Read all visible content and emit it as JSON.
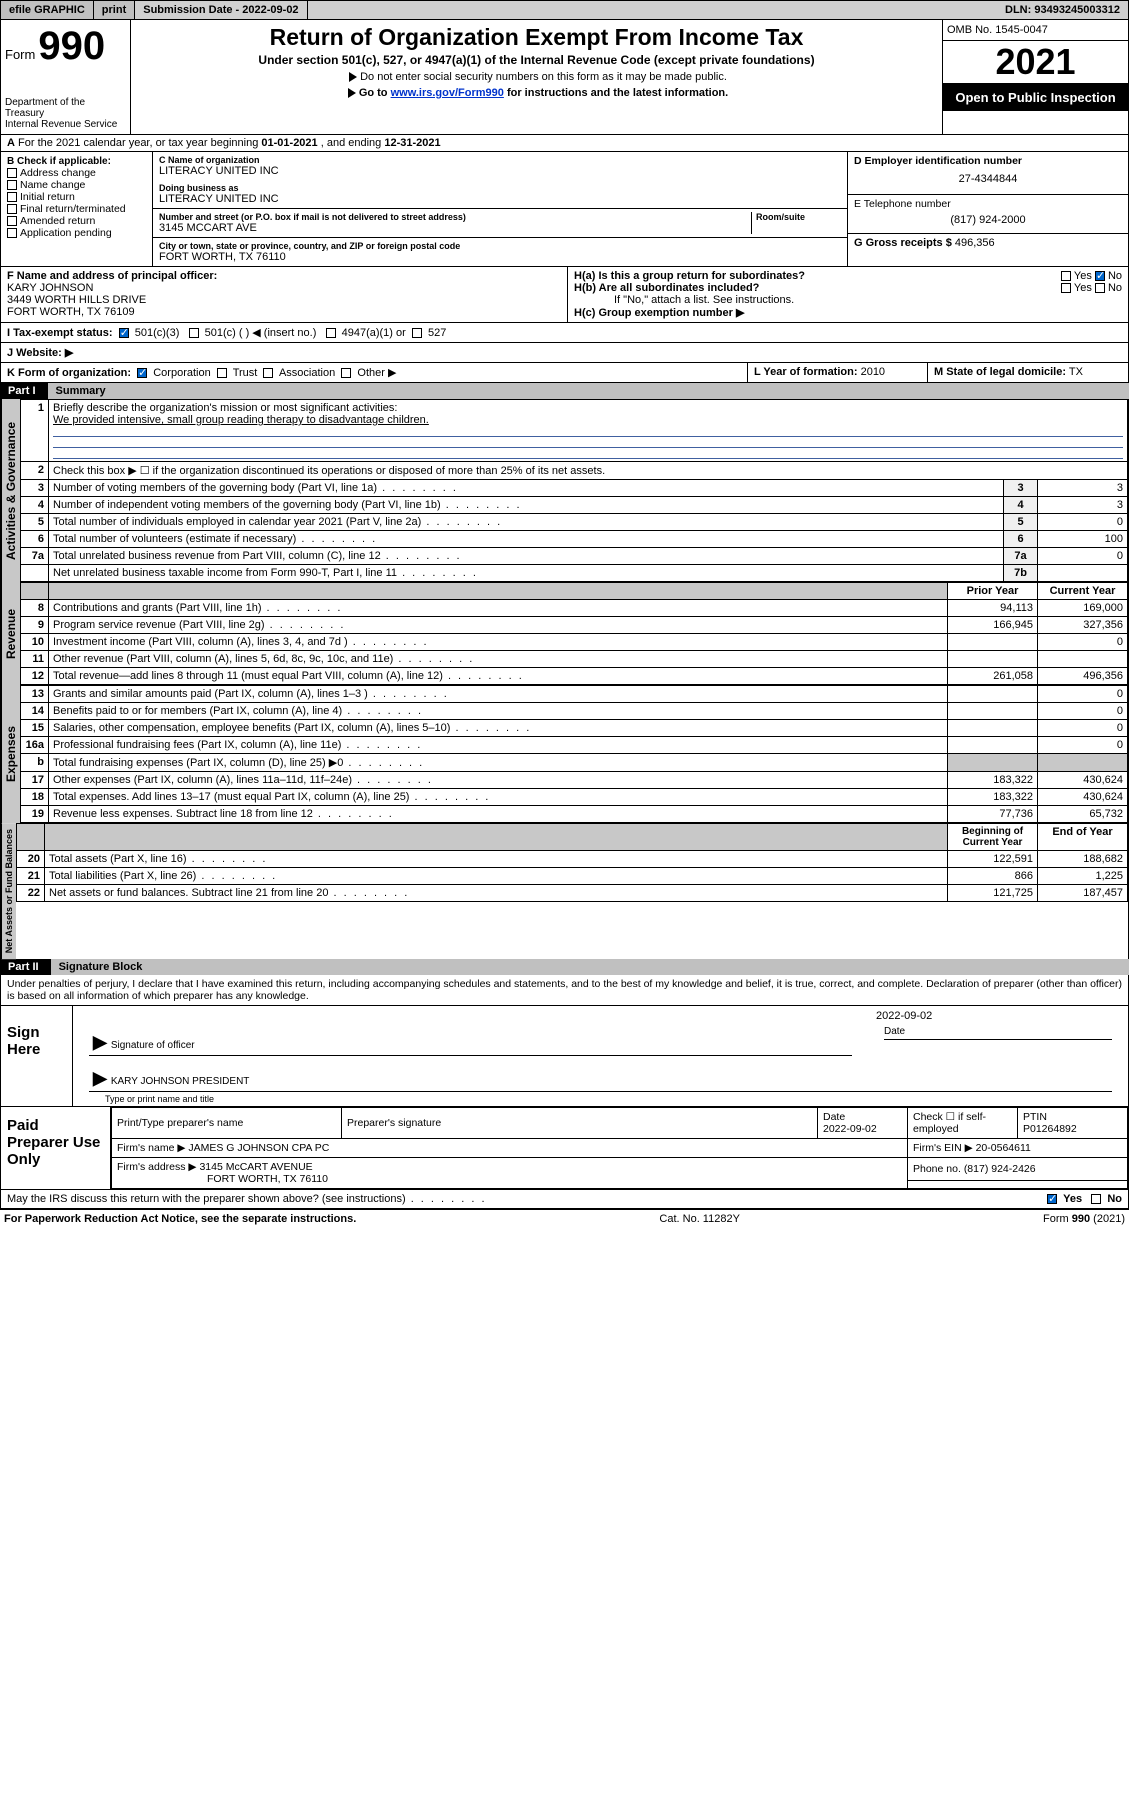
{
  "topbar": {
    "efile": "efile GRAPHIC",
    "print": "print",
    "subdate_label": "Submission Date -",
    "subdate": "2022-09-02",
    "dln_label": "DLN:",
    "dln": "93493245003312"
  },
  "header": {
    "form_word": "Form",
    "form_num": "990",
    "title": "Return of Organization Exempt From Income Tax",
    "subtitle": "Under section 501(c), 527, or 4947(a)(1) of the Internal Revenue Code (except private foundations)",
    "note1": "Do not enter social security numbers on this form as it may be made public.",
    "note2_prefix": "Go to ",
    "note2_link": "www.irs.gov/Form990",
    "note2_suffix": " for instructions and the latest information.",
    "dept": "Department of the Treasury",
    "irs": "Internal Revenue Service",
    "omb": "OMB No. 1545-0047",
    "year": "2021",
    "open": "Open to Public Inspection"
  },
  "rowA": {
    "label": "A",
    "text1": "For the 2021 calendar year, or tax year beginning ",
    "begin": "01-01-2021",
    "mid": " , and ending ",
    "end": "12-31-2021"
  },
  "B": {
    "title": "B Check if applicable:",
    "items": [
      "Address change",
      "Name change",
      "Initial return",
      "Final return/terminated",
      "Amended return",
      "Application pending"
    ]
  },
  "C": {
    "name_lbl": "C Name of organization",
    "name": "LITERACY UNITED INC",
    "dba_lbl": "Doing business as",
    "dba": "LITERACY UNITED INC",
    "addr_lbl": "Number and street (or P.O. box if mail is not delivered to street address)",
    "room_lbl": "Room/suite",
    "addr": "3145 MCCART AVE",
    "city_lbl": "City or town, state or province, country, and ZIP or foreign postal code",
    "city": "FORT WORTH, TX  76110"
  },
  "D": {
    "lbl": "D Employer identification number",
    "val": "27-4344844"
  },
  "E": {
    "lbl": "E Telephone number",
    "val": "(817) 924-2000"
  },
  "G": {
    "lbl": "G Gross receipts $",
    "val": "496,356"
  },
  "F": {
    "lbl": "F Name and address of principal officer:",
    "name": "KARY JOHNSON",
    "addr1": "3449 WORTH HILLS DRIVE",
    "addr2": "FORT WORTH, TX  76109"
  },
  "H": {
    "a": "H(a)  Is this a group return for subordinates?",
    "b": "H(b)  Are all subordinates included?",
    "b_note": "If \"No,\" attach a list. See instructions.",
    "c": "H(c)  Group exemption number ▶",
    "yes": "Yes",
    "no": "No"
  },
  "I": {
    "lbl": "I   Tax-exempt status:",
    "opts": [
      "501(c)(3)",
      "501(c) (  ) ◀ (insert no.)",
      "4947(a)(1) or",
      "527"
    ]
  },
  "J": {
    "lbl": "J   Website: ▶"
  },
  "K": {
    "lbl": "K Form of organization:",
    "opts": [
      "Corporation",
      "Trust",
      "Association",
      "Other ▶"
    ]
  },
  "L": {
    "lbl": "L Year of formation:",
    "val": "2010"
  },
  "M": {
    "lbl": "M State of legal domicile:",
    "val": "TX"
  },
  "part1": {
    "num": "Part I",
    "title": "Summary"
  },
  "sideLabels": {
    "gov": "Activities & Governance",
    "rev": "Revenue",
    "exp": "Expenses",
    "net": "Net Assets or\nFund Balances"
  },
  "q1": {
    "num": "1",
    "text": "Briefly describe the organization's mission or most significant activities:",
    "answer": "We provided intensive, small group reading therapy to disadvantage children."
  },
  "q2": {
    "num": "2",
    "text": "Check this box ▶ ☐  if the organization discontinued its operations or disposed of more than 25% of its net assets."
  },
  "govRows": [
    {
      "n": "3",
      "t": "Number of voting members of the governing body (Part VI, line 1a)",
      "bn": "3",
      "v": "3"
    },
    {
      "n": "4",
      "t": "Number of independent voting members of the governing body (Part VI, line 1b)",
      "bn": "4",
      "v": "3"
    },
    {
      "n": "5",
      "t": "Total number of individuals employed in calendar year 2021 (Part V, line 2a)",
      "bn": "5",
      "v": "0"
    },
    {
      "n": "6",
      "t": "Total number of volunteers (estimate if necessary)",
      "bn": "6",
      "v": "100"
    },
    {
      "n": "7a",
      "t": "Total unrelated business revenue from Part VIII, column (C), line 12",
      "bn": "7a",
      "v": "0"
    },
    {
      "n": "",
      "t": "Net unrelated business taxable income from Form 990-T, Part I, line 11",
      "bn": "7b",
      "v": ""
    }
  ],
  "colHdr": {
    "prior": "Prior Year",
    "current": "Current Year"
  },
  "revRows": [
    {
      "n": "8",
      "t": "Contributions and grants (Part VIII, line 1h)",
      "p": "94,113",
      "c": "169,000"
    },
    {
      "n": "9",
      "t": "Program service revenue (Part VIII, line 2g)",
      "p": "166,945",
      "c": "327,356"
    },
    {
      "n": "10",
      "t": "Investment income (Part VIII, column (A), lines 3, 4, and 7d )",
      "p": "",
      "c": "0"
    },
    {
      "n": "11",
      "t": "Other revenue (Part VIII, column (A), lines 5, 6d, 8c, 9c, 10c, and 11e)",
      "p": "",
      "c": ""
    },
    {
      "n": "12",
      "t": "Total revenue—add lines 8 through 11 (must equal Part VIII, column (A), line 12)",
      "p": "261,058",
      "c": "496,356"
    }
  ],
  "expRows": [
    {
      "n": "13",
      "t": "Grants and similar amounts paid (Part IX, column (A), lines 1–3 )",
      "p": "",
      "c": "0"
    },
    {
      "n": "14",
      "t": "Benefits paid to or for members (Part IX, column (A), line 4)",
      "p": "",
      "c": "0"
    },
    {
      "n": "15",
      "t": "Salaries, other compensation, employee benefits (Part IX, column (A), lines 5–10)",
      "p": "",
      "c": "0"
    },
    {
      "n": "16a",
      "t": "Professional fundraising fees (Part IX, column (A), line 11e)",
      "p": "",
      "c": "0"
    },
    {
      "n": "b",
      "t": "Total fundraising expenses (Part IX, column (D), line 25) ▶0",
      "p": "SH",
      "c": "SH"
    },
    {
      "n": "17",
      "t": "Other expenses (Part IX, column (A), lines 11a–11d, 11f–24e)",
      "p": "183,322",
      "c": "430,624"
    },
    {
      "n": "18",
      "t": "Total expenses. Add lines 13–17 (must equal Part IX, column (A), line 25)",
      "p": "183,322",
      "c": "430,624"
    },
    {
      "n": "19",
      "t": "Revenue less expenses. Subtract line 18 from line 12",
      "p": "77,736",
      "c": "65,732"
    }
  ],
  "netHdr": {
    "begin": "Beginning of Current Year",
    "end": "End of Year"
  },
  "netRows": [
    {
      "n": "20",
      "t": "Total assets (Part X, line 16)",
      "p": "122,591",
      "c": "188,682"
    },
    {
      "n": "21",
      "t": "Total liabilities (Part X, line 26)",
      "p": "866",
      "c": "1,225"
    },
    {
      "n": "22",
      "t": "Net assets or fund balances. Subtract line 21 from line 20",
      "p": "121,725",
      "c": "187,457"
    }
  ],
  "part2": {
    "num": "Part II",
    "title": "Signature Block"
  },
  "declaration": "Under penalties of perjury, I declare that I have examined this return, including accompanying schedules and statements, and to the best of my knowledge and belief, it is true, correct, and complete. Declaration of preparer (other than officer) is based on all information of which preparer has any knowledge.",
  "sign": {
    "here": "Sign Here",
    "sig_officer": "Signature of officer",
    "date_lbl": "Date",
    "date": "2022-09-02",
    "name": "KARY JOHNSON  PRESIDENT",
    "name_lbl": "Type or print name and title"
  },
  "prep": {
    "lbl": "Paid Preparer Use Only",
    "h1": "Print/Type preparer's name",
    "h2": "Preparer's signature",
    "h3": "Date",
    "h4": "Check ☐ if self-employed",
    "h5": "PTIN",
    "date": "2022-09-02",
    "ptin": "P01264892",
    "firm_lbl": "Firm's name  ▶",
    "firm": "JAMES G JOHNSON CPA PC",
    "ein_lbl": "Firm's EIN ▶",
    "ein": "20-0564611",
    "addr_lbl": "Firm's address ▶",
    "addr": "3145 McCART AVENUE",
    "addr2": "FORT WORTH, TX  76110",
    "phone_lbl": "Phone no.",
    "phone": "(817) 924-2426"
  },
  "discuss": {
    "text": "May the IRS discuss this return with the preparer shown above? (see instructions)",
    "yes": "Yes",
    "no": "No"
  },
  "footer": {
    "left": "For Paperwork Reduction Act Notice, see the separate instructions.",
    "mid": "Cat. No. 11282Y",
    "right": "Form 990 (2021)"
  }
}
